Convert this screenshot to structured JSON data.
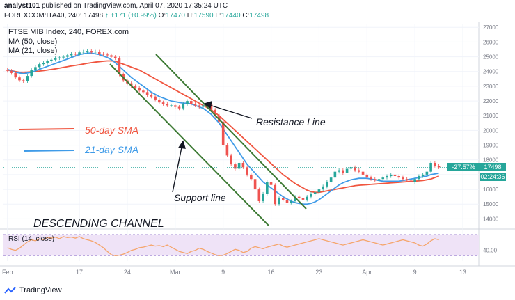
{
  "header": {
    "publisher": "analyst101",
    "published_text": "published on TradingView.com, April 07, 2020 17:35:24 UTC",
    "symbol_line": "FOREXCOM:ITA40, 240",
    "last": "17498",
    "change": "↑ +171 (+0.99%)",
    "open_label": "O:",
    "open": "17470",
    "high_label": "H:",
    "high": "17590",
    "low_label": "L:",
    "low": "17440",
    "close_label": "C:",
    "close": "17498"
  },
  "legend": {
    "title": "FTSE MIB Index, 240, FOREX.com",
    "ma50": "MA (50, close)",
    "ma21": "MA (21, close)",
    "rsi": "RSI (14, close)"
  },
  "annotations": {
    "sma50": "50-day SMA",
    "sma21": "21-day SMA",
    "resistance": "Resistance Line",
    "support": "Support line",
    "channel": "DESCENDING CHANNEL"
  },
  "price_tags": {
    "change_pct": "-27.57%",
    "price": "17498",
    "countdown": "02:24:36"
  },
  "footer": {
    "brand": "TradingView"
  },
  "colors": {
    "up": "#26a69a",
    "down": "#ef5350",
    "ma50": "#f0553f",
    "ma21": "#3f9be8",
    "channel": "#3d7a34",
    "rsi": "#f5a56b",
    "rsi_band": "#efe3f7"
  },
  "chart_data": {
    "type": "candlestick",
    "x_tick_labels": [
      "Feb",
      "17",
      "24",
      "Mar",
      "9",
      "16",
      "23",
      "Apr",
      "9",
      "13"
    ],
    "x_tick_positions": [
      0,
      18,
      30,
      42,
      54,
      66,
      78,
      90,
      102,
      114
    ],
    "y_ticks": [
      14000,
      15000,
      16000,
      17000,
      18000,
      19000,
      20000,
      21000,
      22000,
      23000,
      24000,
      25000,
      26000,
      27000
    ],
    "ylim": [
      13500,
      27200
    ],
    "xlim": [
      -1,
      118
    ],
    "rsi_ticks": [
      40
    ],
    "rsi_ylim": [
      20,
      75
    ],
    "rsi_band": [
      30,
      70
    ],
    "close": [
      24050,
      23900,
      23600,
      23400,
      23350,
      23700,
      24100,
      24300,
      24500,
      24600,
      24700,
      24800,
      24900,
      24950,
      25000,
      25100,
      25200,
      25150,
      25300,
      25350,
      25400,
      25300,
      25350,
      25200,
      25150,
      25100,
      25000,
      24900,
      23800,
      23400,
      23200,
      23000,
      22900,
      22700,
      22600,
      22400,
      22300,
      22100,
      21900,
      21800,
      21700,
      21700,
      21600,
      21500,
      21800,
      22000,
      21800,
      21700,
      21600,
      21700,
      21800,
      21400,
      21000,
      20600,
      19000,
      18300,
      17700,
      17400,
      17800,
      17500,
      17000,
      16700,
      16000,
      15200,
      15700,
      16500,
      16300,
      15000,
      15400,
      15300,
      15100,
      15200,
      15500,
      15400,
      15300,
      15500,
      15700,
      15800,
      16000,
      16200,
      16500,
      16800,
      17200,
      17300,
      17100,
      17400,
      17500,
      17300,
      17200,
      17000,
      16800,
      16700,
      16600,
      16700,
      16800,
      16900,
      17000,
      16900,
      16800,
      16700,
      16600,
      16500,
      16700,
      16900,
      17000,
      17200,
      17800,
      17600,
      17498
    ],
    "ma50": [
      24100,
      24050,
      24000,
      23950,
      23950,
      23960,
      23980,
      24000,
      24030,
      24060,
      24100,
      24140,
      24180,
      24230,
      24280,
      24330,
      24380,
      24420,
      24460,
      24510,
      24560,
      24600,
      24640,
      24670,
      24700,
      24720,
      24720,
      24700,
      24600,
      24500,
      24400,
      24300,
      24200,
      24100,
      23950,
      23800,
      23650,
      23500,
      23350,
      23200,
      23050,
      22900,
      22750,
      22600,
      22450,
      22300,
      22150,
      22000,
      21850,
      21700,
      21550,
      21400,
      21200,
      21000,
      20750,
      20500,
      20250,
      20000,
      19750,
      19500,
      19250,
      19000,
      18750,
      18500,
      18250,
      18000,
      17750,
      17500,
      17250,
      17000,
      16800,
      16600,
      16400,
      16250,
      16100,
      15950,
      15850,
      15800,
      15800,
      15850,
      15900,
      15950,
      16000,
      16050,
      16100,
      16150,
      16200,
      16250,
      16280,
      16300,
      16320,
      16340,
      16360,
      16380,
      16400,
      16420,
      16440,
      16460,
      16480,
      16500,
      16520,
      16540,
      16560,
      16580,
      16600,
      16650,
      16700,
      16800,
      16900
    ],
    "ma21": [
      24150,
      24050,
      23950,
      23900,
      23850,
      23900,
      23950,
      24050,
      24150,
      24250,
      24350,
      24450,
      24550,
      24650,
      24750,
      24850,
      24950,
      25050,
      25150,
      25200,
      25250,
      25250,
      25200,
      25150,
      25050,
      24950,
      24800,
      24600,
      24350,
      24100,
      23850,
      23600,
      23400,
      23200,
      23000,
      22800,
      22600,
      22450,
      22300,
      22200,
      22100,
      22000,
      21950,
      21900,
      21850,
      21850,
      21800,
      21700,
      21600,
      21500,
      21300,
      21100,
      20800,
      20500,
      20100,
      19700,
      19300,
      18900,
      18500,
      18100,
      17700,
      17400,
      17100,
      16800,
      16500,
      16300,
      16100,
      15900,
      15700,
      15500,
      15350,
      15200,
      15100,
      15050,
      15000,
      15000,
      15050,
      15150,
      15300,
      15500,
      15700,
      15900,
      16100,
      16300,
      16450,
      16550,
      16650,
      16700,
      16750,
      16750,
      16750,
      16700,
      16650,
      16600,
      16550,
      16550,
      16550,
      16550,
      16550,
      16600,
      16650,
      16700,
      16750,
      16800,
      16850,
      16900,
      17000,
      17050,
      17100
    ],
    "rsi": [
      45,
      42,
      40,
      44,
      50,
      56,
      60,
      58,
      62,
      60,
      64,
      63,
      65,
      62,
      66,
      64,
      65,
      63,
      66,
      62,
      60,
      58,
      55,
      50,
      45,
      38,
      32,
      30,
      31,
      33,
      36,
      40,
      42,
      45,
      46,
      48,
      50,
      48,
      49,
      47,
      50,
      46,
      42,
      38,
      36,
      34,
      38,
      40,
      44,
      42,
      38,
      35,
      32,
      30,
      31,
      34,
      38,
      42,
      40,
      36,
      38,
      44,
      47,
      45,
      43,
      46,
      48,
      50,
      52,
      48,
      46,
      48,
      50,
      52,
      54,
      56,
      58,
      60,
      62,
      60,
      58,
      56,
      54,
      52,
      50,
      52,
      54,
      56,
      58,
      60,
      58,
      56,
      54,
      52,
      50,
      52,
      54,
      56,
      58,
      60,
      58,
      56,
      54,
      50,
      48,
      52,
      58,
      62,
      60
    ]
  }
}
